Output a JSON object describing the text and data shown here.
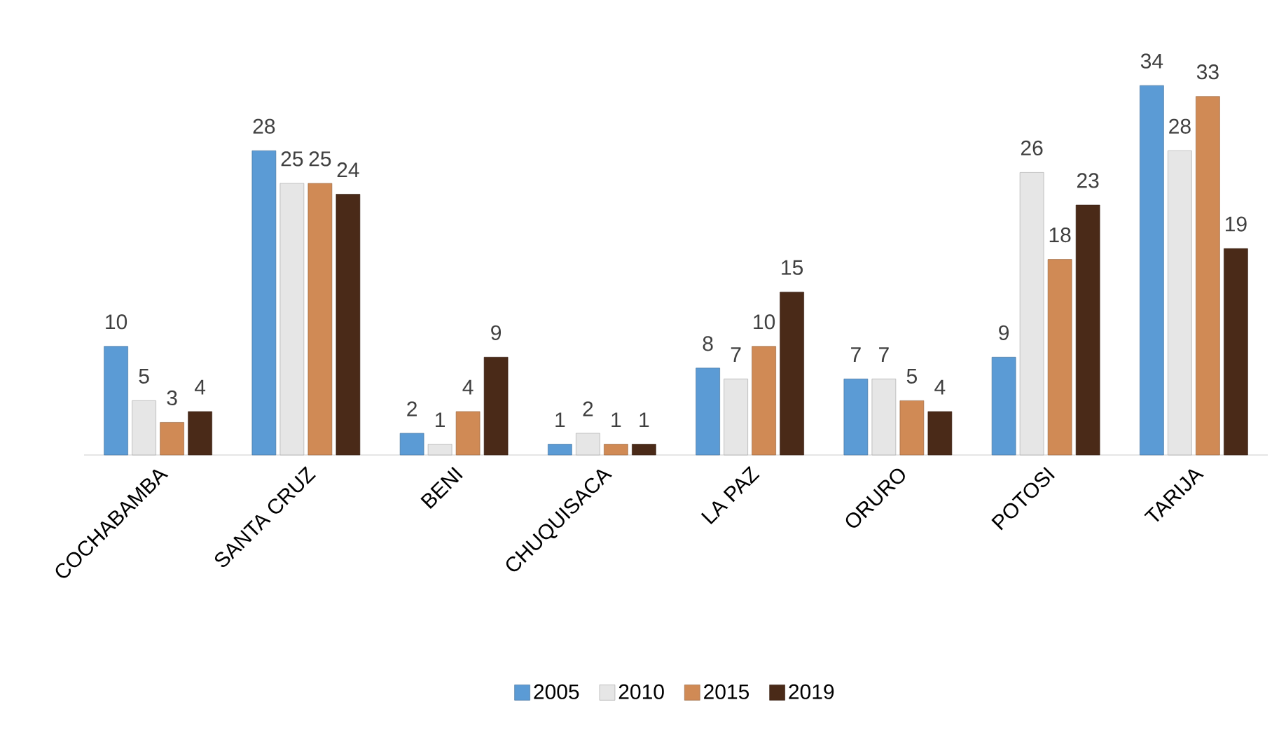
{
  "chart_data": {
    "type": "bar",
    "categories": [
      "COCHABAMBA",
      "SANTA CRUZ",
      "BENI",
      "CHUQUISACA",
      "LA PAZ",
      "ORURO",
      "POTOSI",
      "TARIJA"
    ],
    "series": [
      {
        "name": "2005",
        "color": "#5b9bd5",
        "values": [
          10,
          28,
          2,
          1,
          8,
          7,
          9,
          34
        ]
      },
      {
        "name": "2010",
        "color": "#e6e6e6",
        "values": [
          5,
          25,
          1,
          2,
          7,
          7,
          26,
          28
        ]
      },
      {
        "name": "2015",
        "color": "#d08a55",
        "values": [
          3,
          25,
          4,
          1,
          10,
          5,
          18,
          33
        ]
      },
      {
        "name": "2019",
        "color": "#4a2a18",
        "values": [
          4,
          24,
          9,
          1,
          15,
          4,
          23,
          19
        ]
      }
    ],
    "data_labels": true,
    "legend": "bottom",
    "tick_labels": "x",
    "grid": false
  }
}
